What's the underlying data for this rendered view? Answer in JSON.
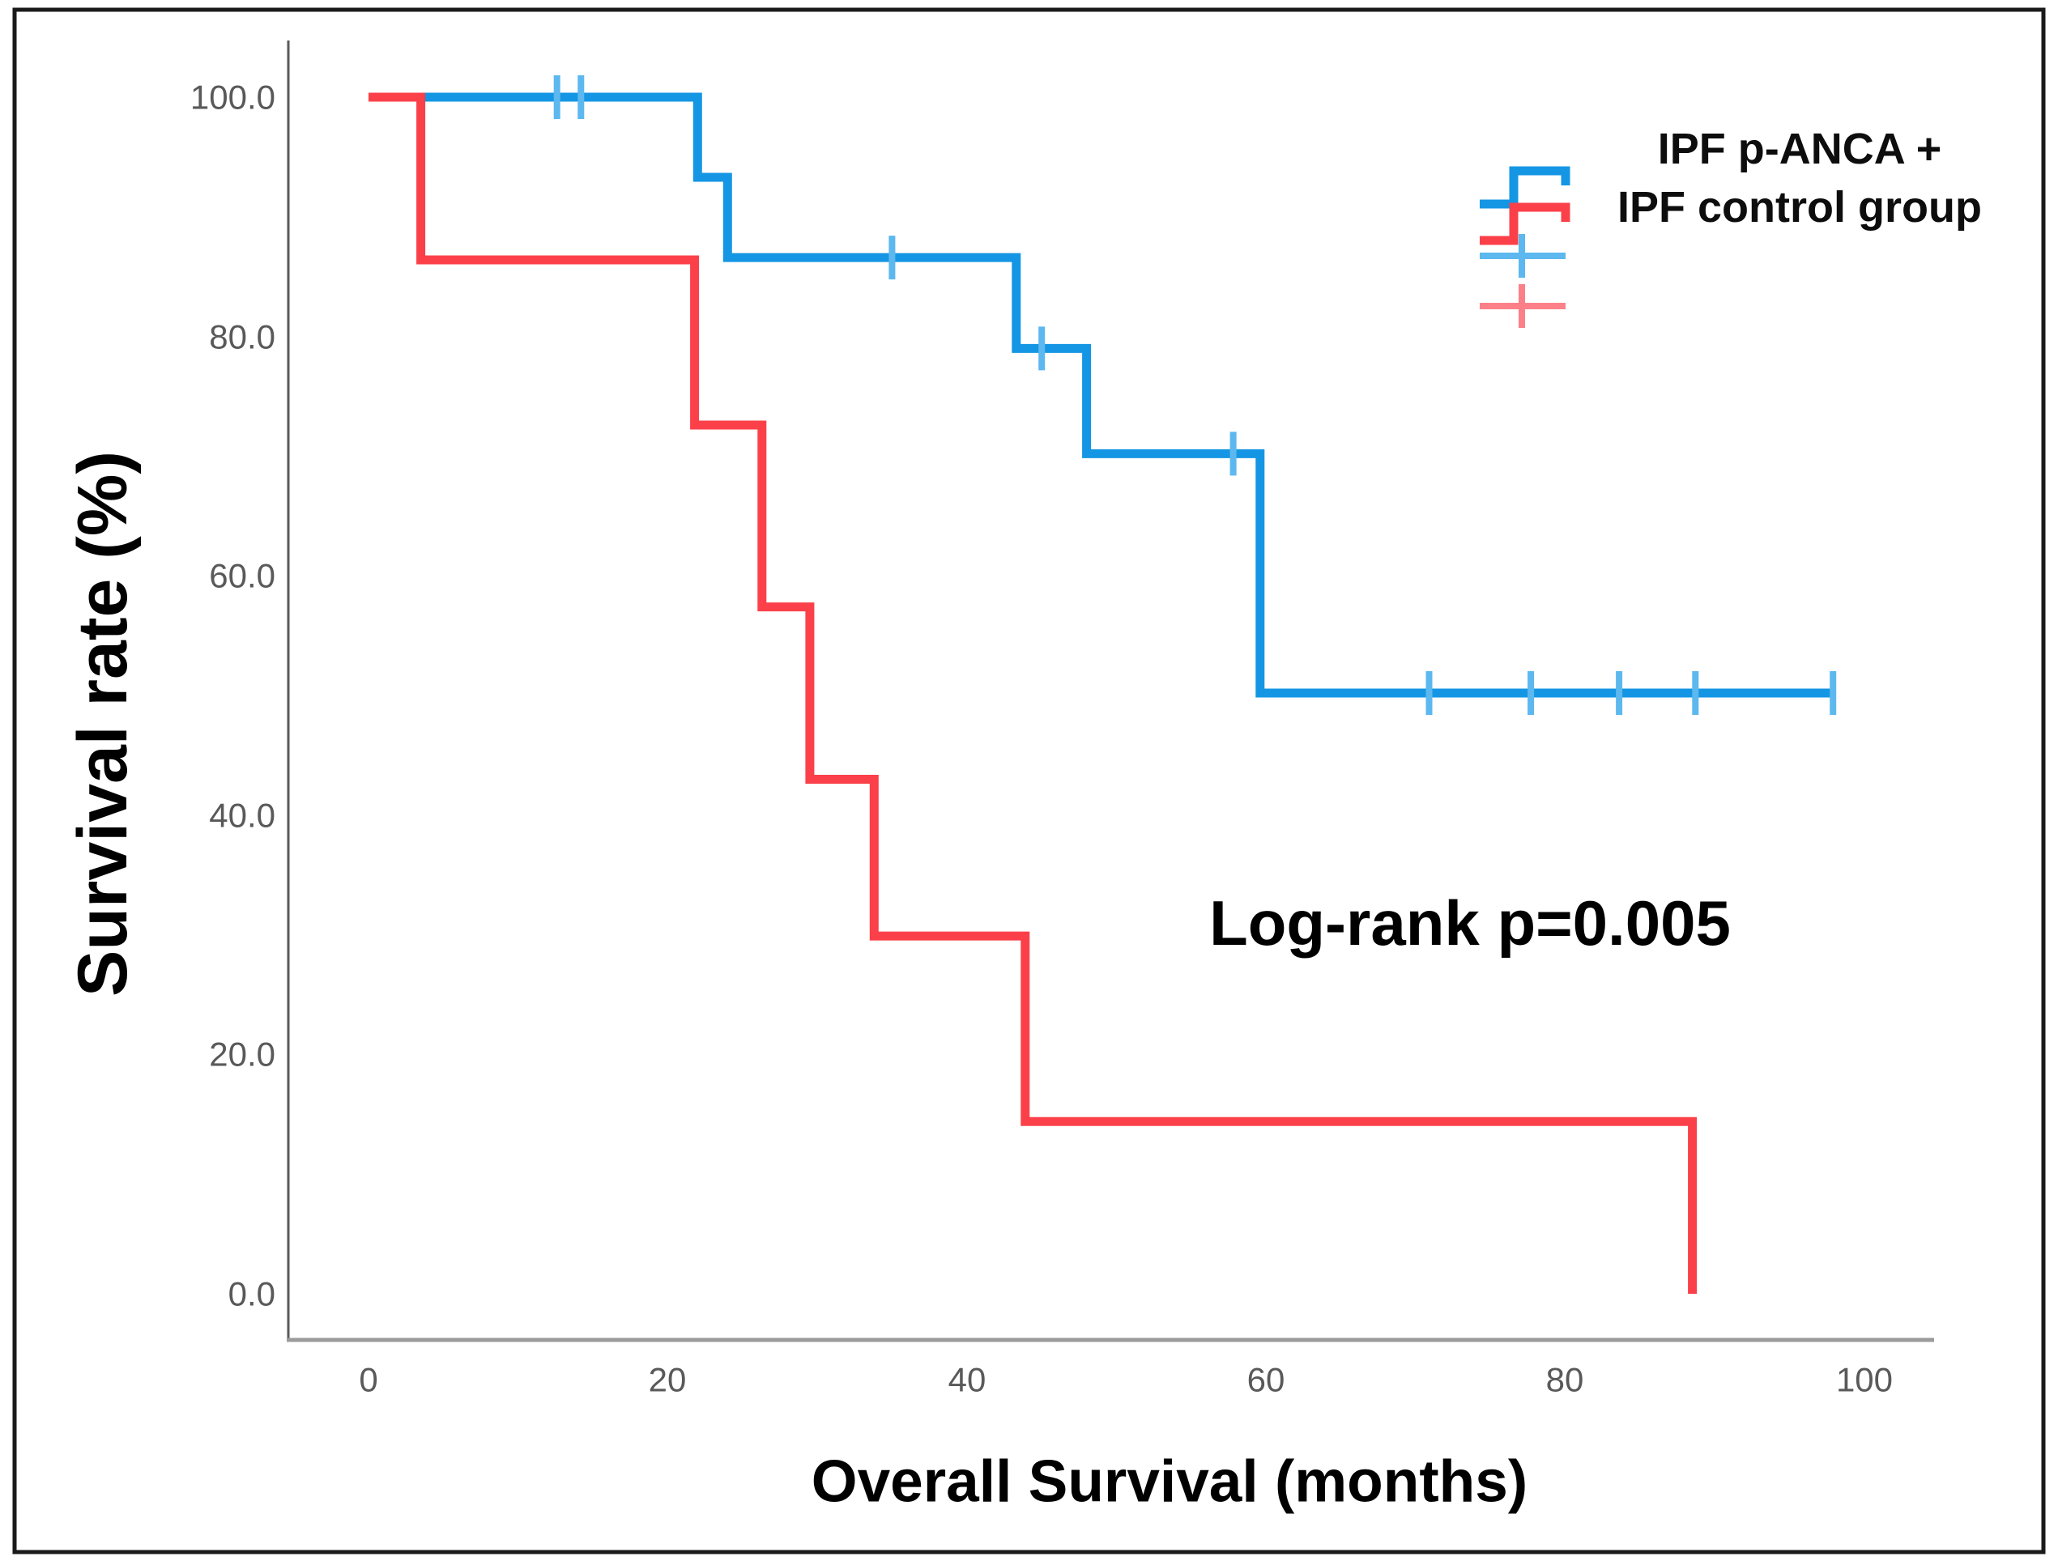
{
  "figure": {
    "type_label": "Kaplan-Meier survival plot",
    "annotation": "Log-rank p=0.005",
    "y_axis_title": "Survival rate (%)",
    "x_axis_title": "Overall Survival (months)"
  },
  "legend": {
    "items": [
      {
        "label": "IPF p-ANCA +",
        "color": "#1496E4",
        "symbol": "step-line"
      },
      {
        "label": "IPF control group",
        "color": "#FB4049",
        "symbol": "step-line"
      },
      {
        "label": "",
        "color": "#5CB8EF",
        "symbol": "censor-plus"
      },
      {
        "label": "",
        "color": "#FC8088",
        "symbol": "censor-plus"
      }
    ]
  },
  "chart_data": {
    "type": "line",
    "subtype": "kaplan-meier-step",
    "title": "",
    "xlabel": "Overall Survival (months)",
    "ylabel": "Survival rate (%)",
    "xlim": [
      0,
      100
    ],
    "ylim": [
      0,
      100
    ],
    "x_tick_values": [
      0,
      20,
      40,
      60,
      80,
      100
    ],
    "y_tick_values": [
      100,
      80,
      60,
      40,
      20,
      0
    ],
    "x_ticks": [
      "0",
      "20",
      "40",
      "60",
      "80",
      "100"
    ],
    "y_ticks": [
      "100.0",
      "80.0",
      "60.0",
      "40.0",
      "20.0",
      "0.0"
    ],
    "grid": false,
    "legend_position": "top-right",
    "annotation": {
      "text": "Log-rank p=0.005",
      "x": 74,
      "y": 31
    },
    "series": [
      {
        "name": "IPF p-ANCA +",
        "color": "#1496E4",
        "censor_color": "#5CB8EF",
        "steps": [
          [
            0,
            100
          ],
          [
            22,
            100
          ],
          [
            22,
            93.3
          ],
          [
            24,
            93.3
          ],
          [
            24,
            86.6
          ],
          [
            43.3,
            86.6
          ],
          [
            43.3,
            79.0
          ],
          [
            48,
            79.0
          ],
          [
            48,
            70.2
          ],
          [
            59.6,
            70.2
          ],
          [
            59.6,
            50.2
          ],
          [
            98,
            50.2
          ]
        ],
        "censors": [
          [
            12.6,
            100
          ],
          [
            14.2,
            100
          ],
          [
            35,
            86.6
          ],
          [
            45,
            79.0
          ],
          [
            57.8,
            70.2
          ],
          [
            70.9,
            50.2
          ],
          [
            77.7,
            50.2
          ],
          [
            83.6,
            50.2
          ],
          [
            88.7,
            50.2
          ],
          [
            97.9,
            50.2
          ]
        ]
      },
      {
        "name": "IPF control group",
        "color": "#FB4049",
        "censor_color": "#FC8088",
        "steps": [
          [
            0,
            100
          ],
          [
            3.5,
            100
          ],
          [
            3.5,
            86.4
          ],
          [
            21.8,
            86.4
          ],
          [
            21.8,
            72.6
          ],
          [
            26.3,
            72.6
          ],
          [
            26.3,
            57.4
          ],
          [
            29.5,
            57.4
          ],
          [
            29.5,
            43.0
          ],
          [
            33.8,
            43.0
          ],
          [
            33.8,
            29.9
          ],
          [
            43.9,
            29.9
          ],
          [
            43.9,
            14.4
          ],
          [
            88.5,
            14.4
          ],
          [
            88.5,
            0
          ]
        ],
        "censors": []
      }
    ]
  },
  "colors": {
    "blue_line": "#1496E4",
    "blue_censor": "#5CB8EF",
    "red_line": "#FB4049",
    "red_censor": "#FC8088",
    "y_axis_line": "#5a5a5a",
    "x_axis_line": "#9b9b9b",
    "tick_text": "#595959",
    "border": "#1a1a1a",
    "background": "#ffffff"
  }
}
